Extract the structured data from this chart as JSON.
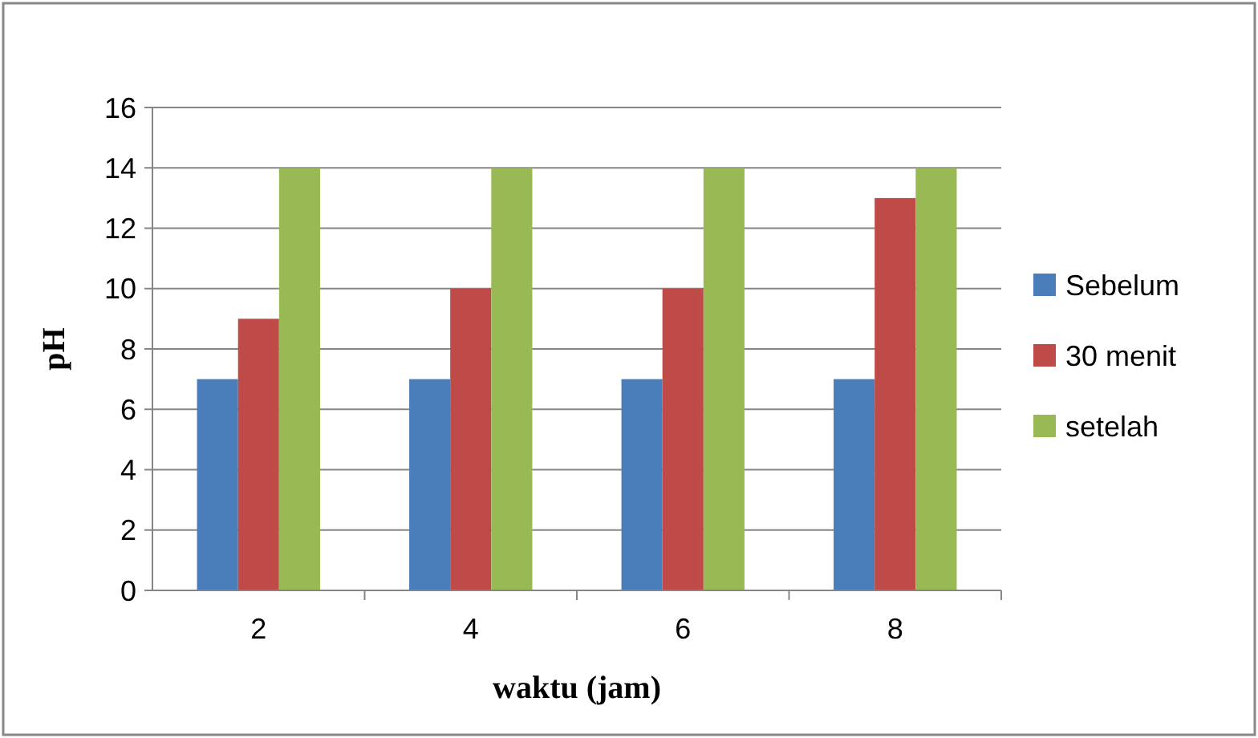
{
  "chart_data": {
    "type": "bar",
    "xlabel": "waktu (jam)",
    "ylabel": "pH",
    "categories": [
      "2",
      "4",
      "6",
      "8"
    ],
    "series": [
      {
        "name": "Sebelum",
        "color": "#4a7ebb",
        "values": [
          7,
          7,
          7,
          7
        ]
      },
      {
        "name": "30 menit",
        "color": "#be4b48",
        "values": [
          9,
          10,
          10,
          13
        ]
      },
      {
        "name": "setelah",
        "color": "#98b954",
        "values": [
          14,
          14,
          14,
          14
        ]
      }
    ],
    "ylim": [
      0,
      16
    ],
    "yticks": [
      0,
      2,
      4,
      6,
      8,
      10,
      12,
      14,
      16
    ],
    "grid": "y",
    "legend": "right"
  }
}
